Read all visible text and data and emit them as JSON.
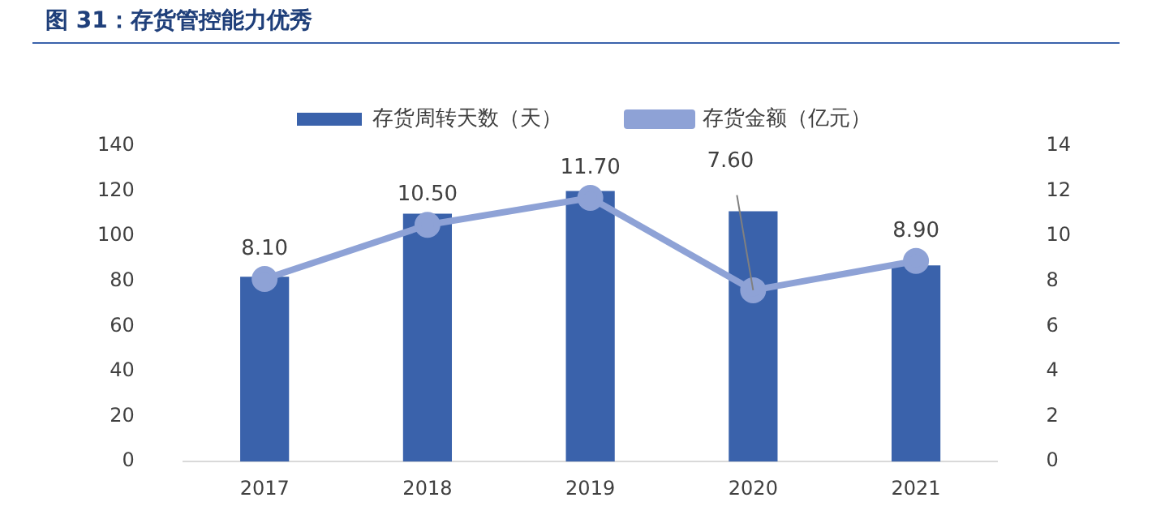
{
  "chart_data": {
    "type": "bar",
    "title": "图 31：存货管控能力优秀",
    "categories": [
      "2017",
      "2018",
      "2019",
      "2020",
      "2021"
    ],
    "series": [
      {
        "name": "存货周转天数（天）",
        "color": "#3a62ab",
        "values": [
          82,
          110,
          120,
          111,
          87
        ]
      },
      {
        "name": "存货金额（亿元）",
        "type": "line",
        "axis": "y2",
        "color": "#8ea2d6",
        "marker": "circle",
        "values": [
          8.1,
          10.5,
          11.7,
          7.6,
          8.9
        ],
        "value_labels": [
          "8.10",
          "10.50",
          "11.70",
          "7.60",
          "8.90"
        ]
      }
    ],
    "ylim": [
      0,
      140
    ],
    "yticks": [
      0,
      20,
      40,
      60,
      80,
      100,
      120,
      140
    ],
    "y2lim": [
      0,
      14
    ],
    "y2ticks": [
      0,
      2,
      4,
      6,
      8,
      10,
      12,
      14
    ],
    "grid": false,
    "legend": "top"
  }
}
